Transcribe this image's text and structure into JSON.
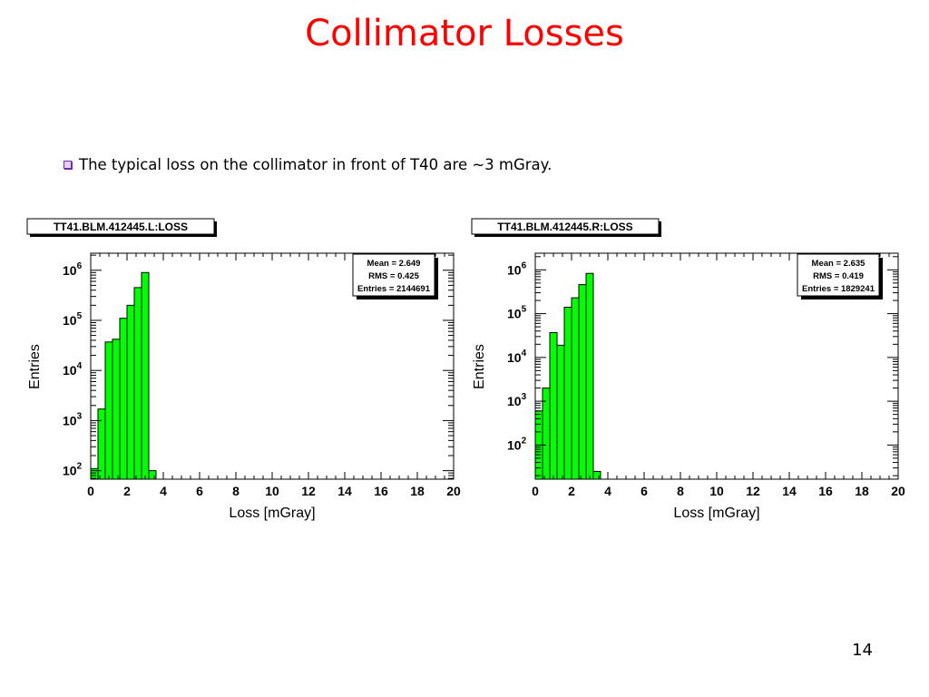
{
  "slide": {
    "title": "Collimator Losses",
    "bullet": "The typical loss on the collimator in front of T40 are ~3 mGray.",
    "page_number": "14"
  },
  "colors": {
    "title": "#ff0000",
    "fill": "#00ff00",
    "bullet": "#7a2aa8"
  },
  "chart_data": [
    {
      "type": "bar",
      "title": "TT41.BLM.412445.L:LOSS",
      "xlabel": "Loss [mGray]",
      "ylabel": "Entries",
      "xlim": [
        0,
        20
      ],
      "ylog": true,
      "ylim_log10": [
        1.83,
        6.34
      ],
      "xticks": [
        "0",
        "2",
        "4",
        "6",
        "8",
        "10",
        "12",
        "14",
        "16",
        "18",
        "20"
      ],
      "yticks": [
        {
          "base": "10",
          "exp": "2",
          "value": 100
        },
        {
          "base": "10",
          "exp": "3",
          "value": 1000
        },
        {
          "base": "10",
          "exp": "4",
          "value": 10000
        },
        {
          "base": "10",
          "exp": "5",
          "value": 100000
        },
        {
          "base": "10",
          "exp": "6",
          "value": 1000000
        }
      ],
      "bin_width": 0.4,
      "bins": [
        0,
        0.4,
        0.8,
        1.2,
        1.6,
        2.0,
        2.4,
        2.8,
        3.2
      ],
      "values": [
        110,
        1700,
        37000,
        42000,
        110000,
        200000,
        450000,
        900000,
        100
      ],
      "stats": {
        "mean_label": "Mean = 2.649",
        "rms_label": "RMS = 0.425",
        "entries_label": "Entries = 2144691"
      }
    },
    {
      "type": "bar",
      "title": "TT41.BLM.412445.R:LOSS",
      "xlabel": "Loss [mGray]",
      "ylabel": "Entries",
      "xlim": [
        0,
        20
      ],
      "ylog": true,
      "ylim_log10": [
        1.22,
        6.38
      ],
      "xticks": [
        "0",
        "2",
        "4",
        "6",
        "8",
        "10",
        "12",
        "14",
        "16",
        "18",
        "20"
      ],
      "yticks": [
        {
          "base": "10",
          "exp": "2",
          "value": 100
        },
        {
          "base": "10",
          "exp": "3",
          "value": 1000
        },
        {
          "base": "10",
          "exp": "4",
          "value": 10000
        },
        {
          "base": "10",
          "exp": "5",
          "value": 100000
        },
        {
          "base": "10",
          "exp": "6",
          "value": 1000000
        }
      ],
      "bin_width": 0.4,
      "bins": [
        0,
        0.4,
        0.8,
        1.2,
        1.6,
        2.0,
        2.4,
        2.8,
        3.2
      ],
      "values": [
        600,
        2000,
        37000,
        19000,
        140000,
        230000,
        460000,
        830000,
        25
      ],
      "stats": {
        "mean_label": "Mean = 2.635",
        "rms_label": "RMS = 0.419",
        "entries_label": "Entries = 1829241"
      }
    }
  ]
}
